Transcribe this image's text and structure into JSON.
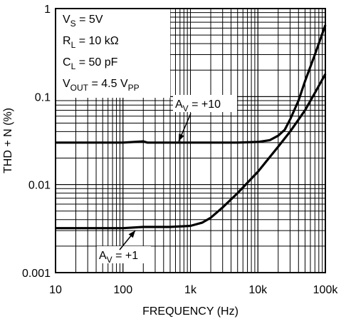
{
  "chart_data": {
    "type": "line",
    "xlabel": "FREQUENCY (Hz)",
    "ylabel": "THD + N (%)",
    "x_scale": "log",
    "y_scale": "log",
    "xlim": [
      10,
      100000
    ],
    "ylim": [
      0.001,
      1
    ],
    "grid": true,
    "x_ticks": [
      {
        "value": 10,
        "label": "10"
      },
      {
        "value": 100,
        "label": "100"
      },
      {
        "value": 1000,
        "label": "1k"
      },
      {
        "value": 10000,
        "label": "10k"
      },
      {
        "value": 100000,
        "label": "100k"
      }
    ],
    "y_ticks": [
      {
        "value": 0.001,
        "label": "0.001"
      },
      {
        "value": 0.01,
        "label": "0.01"
      },
      {
        "value": 0.1,
        "label": "0.1"
      },
      {
        "value": 1,
        "label": "1"
      }
    ],
    "conditions": [
      {
        "main": "V",
        "sub": "S",
        "rest": " = 5V"
      },
      {
        "main": "R",
        "sub": "L",
        "rest": " = 10 kΩ"
      },
      {
        "main": "C",
        "sub": "L",
        "rest": " = 50 pF"
      },
      {
        "main": "V",
        "sub": "OUT",
        "rest": " = 4.5 V",
        "sub2": "PP"
      }
    ],
    "series": [
      {
        "name": "AV = +10",
        "label": {
          "main": "A",
          "sub": "V",
          "rest": " = +10"
        },
        "points": [
          [
            10,
            0.03
          ],
          [
            100,
            0.03
          ],
          [
            200,
            0.031
          ],
          [
            230,
            0.03
          ],
          [
            1000,
            0.03
          ],
          [
            5000,
            0.03
          ],
          [
            10000,
            0.0305
          ],
          [
            15000,
            0.032
          ],
          [
            20000,
            0.036
          ],
          [
            25000,
            0.042
          ],
          [
            30000,
            0.055
          ],
          [
            40000,
            0.09
          ],
          [
            50000,
            0.15
          ],
          [
            70000,
            0.3
          ],
          [
            100000,
            0.65
          ]
        ]
      },
      {
        "name": "AV = +1",
        "label": {
          "main": "A",
          "sub": "V",
          "rest": " = +1"
        },
        "points": [
          [
            10,
            0.0032
          ],
          [
            100,
            0.0032
          ],
          [
            200,
            0.0033
          ],
          [
            500,
            0.0033
          ],
          [
            1000,
            0.0034
          ],
          [
            1500,
            0.0037
          ],
          [
            2000,
            0.0042
          ],
          [
            3000,
            0.0055
          ],
          [
            5000,
            0.008
          ],
          [
            10000,
            0.014
          ],
          [
            20000,
            0.027
          ],
          [
            30000,
            0.04
          ],
          [
            50000,
            0.07
          ],
          [
            70000,
            0.11
          ],
          [
            100000,
            0.18
          ]
        ]
      }
    ]
  }
}
